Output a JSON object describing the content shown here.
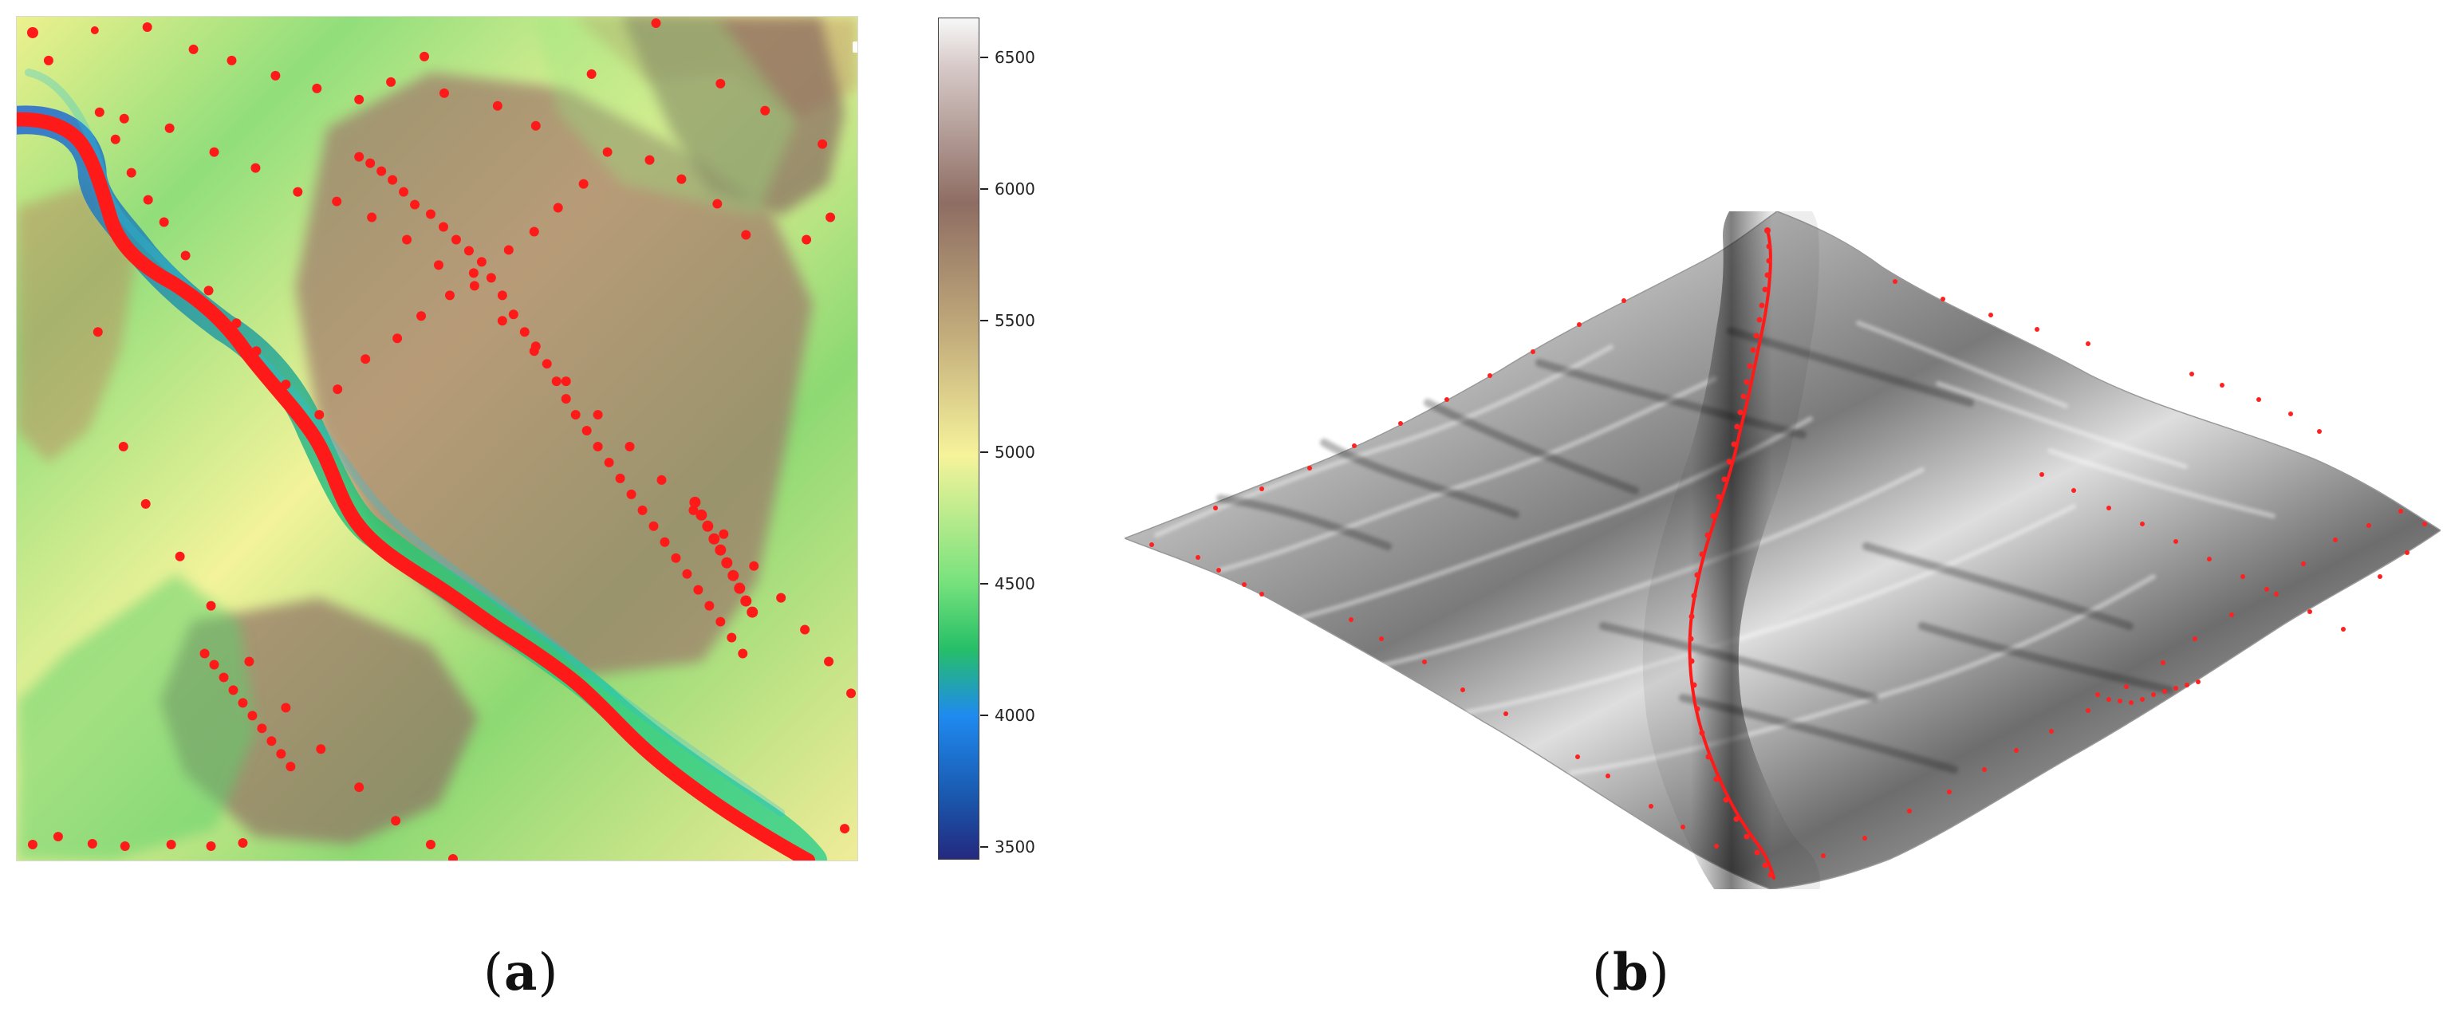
{
  "figure": {
    "left_panel": {
      "colorbar": {
        "ticks": [
          "6500",
          "6000",
          "5500",
          "5000",
          "4500",
          "4000",
          "3500"
        ],
        "min": 3450,
        "max": 6650
      }
    },
    "captions": {
      "a": {
        "open": "(",
        "letter": "a",
        "close": ")"
      },
      "b": {
        "open": "(",
        "letter": "b",
        "close": ")"
      }
    },
    "colors": {
      "marker": "#ff1a1a",
      "background": "#ffffff",
      "terrain_light": "#f4f4f4",
      "terrain_dark": "#262626"
    }
  }
}
